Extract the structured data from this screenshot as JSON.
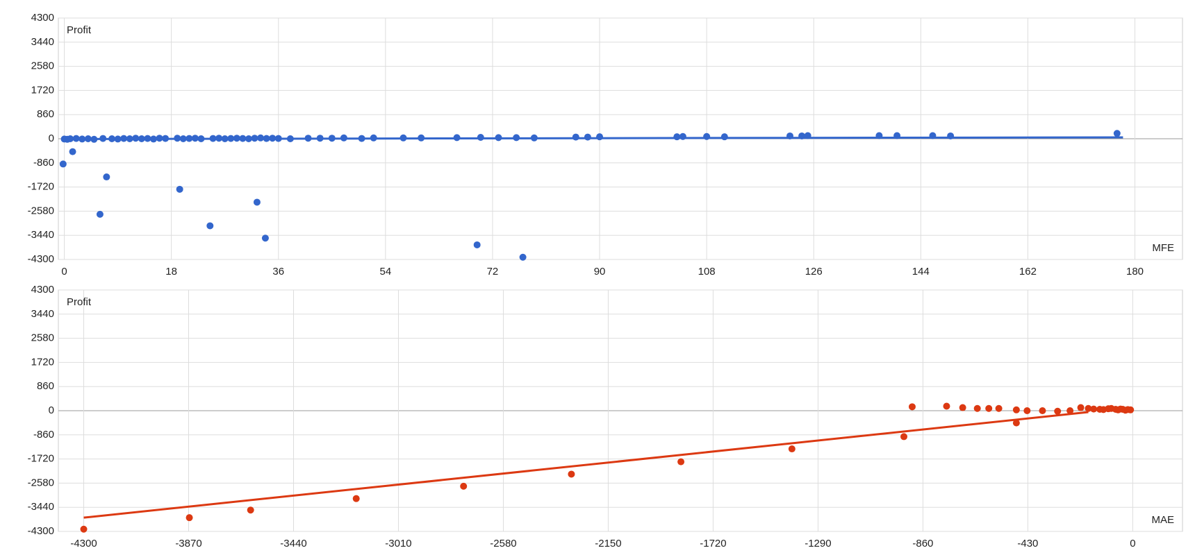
{
  "chart_data": [
    {
      "type": "scatter",
      "y_label": "Profit",
      "x_label": "MFE",
      "xlim": [
        -1,
        188
      ],
      "ylim": [
        -4300,
        4300
      ],
      "xticks": [
        0,
        18,
        36,
        54,
        72,
        90,
        108,
        126,
        144,
        162,
        180
      ],
      "yticks": [
        -4300,
        -3440,
        -2580,
        -1720,
        -860,
        0,
        860,
        1720,
        2580,
        3440,
        4300
      ],
      "grid": true,
      "series": [
        {
          "color": "#3366cc",
          "x": [
            -0.2,
            1.4,
            7.1,
            6,
            19.4,
            24.5,
            32.4,
            33.8,
            69.4,
            77.1,
            0,
            0.5,
            1,
            2,
            3,
            4,
            5,
            6.5,
            8,
            9,
            10,
            11,
            12,
            13,
            14,
            15,
            16,
            17,
            19,
            20,
            21,
            22,
            23,
            25,
            26,
            27,
            28,
            29,
            30,
            31,
            32,
            33,
            34,
            35,
            36,
            38,
            41,
            43,
            45,
            47,
            50,
            52,
            57,
            60,
            66,
            70,
            73,
            76,
            79,
            86,
            88,
            90,
            103,
            104,
            108,
            111,
            122,
            124,
            125,
            137,
            140,
            146,
            149,
            177
          ],
          "values": [
            -900,
            -460,
            -1360,
            -2690,
            -1800,
            -3100,
            -2260,
            -3540,
            -3780,
            -4220,
            -10,
            -20,
            0,
            10,
            -10,
            0,
            -20,
            10,
            0,
            -10,
            10,
            0,
            20,
            0,
            10,
            -10,
            20,
            10,
            20,
            0,
            10,
            20,
            0,
            10,
            20,
            0,
            10,
            20,
            10,
            0,
            20,
            30,
            10,
            20,
            10,
            0,
            20,
            20,
            20,
            30,
            10,
            30,
            30,
            30,
            40,
            50,
            40,
            40,
            30,
            60,
            60,
            70,
            70,
            80,
            80,
            70,
            100,
            100,
            110,
            110,
            110,
            110,
            100,
            190
          ]
        }
      ],
      "trendline": {
        "color": "#3366cc",
        "x": [
          0,
          178
        ],
        "values": [
          -10,
          50
        ]
      }
    },
    {
      "type": "scatter",
      "y_label": "Profit",
      "x_label": "MAE",
      "xlim": [
        -4404,
        204
      ],
      "ylim": [
        -4300,
        4300
      ],
      "xticks": [
        -4300,
        -3870,
        -3440,
        -3010,
        -2580,
        -2150,
        -1720,
        -1290,
        -860,
        -430,
        0
      ],
      "yticks": [
        -4300,
        -3440,
        -2580,
        -1720,
        -860,
        0,
        860,
        1720,
        2580,
        3440,
        4300
      ],
      "grid": true,
      "series": [
        {
          "color": "#dc3912",
          "x": [
            -4300,
            -3867,
            -3616,
            -3183,
            -2743,
            -2301,
            -1852,
            -1397,
            -938,
            -904,
            -763,
            -697,
            -637,
            -590,
            -549,
            -477,
            -477,
            -433,
            -370,
            -308,
            -257,
            -213,
            -182,
            -135,
            -88,
            -41,
            -9,
            -160,
            -120,
            -100,
            -70,
            -60,
            -50,
            -30,
            -20
          ],
          "values": [
            -4220,
            -3810,
            -3540,
            -3130,
            -2690,
            -2260,
            -1820,
            -1360,
            -925,
            140,
            160,
            110,
            80,
            80,
            80,
            -435,
            30,
            0,
            0,
            -20,
            0,
            110,
            80,
            50,
            80,
            50,
            30,
            60,
            40,
            70,
            50,
            30,
            60,
            20,
            40
          ]
        }
      ],
      "trendline": {
        "color": "#dc3912",
        "x": [
          -4300,
          -182
        ],
        "values": [
          -3810,
          -50
        ]
      }
    }
  ]
}
